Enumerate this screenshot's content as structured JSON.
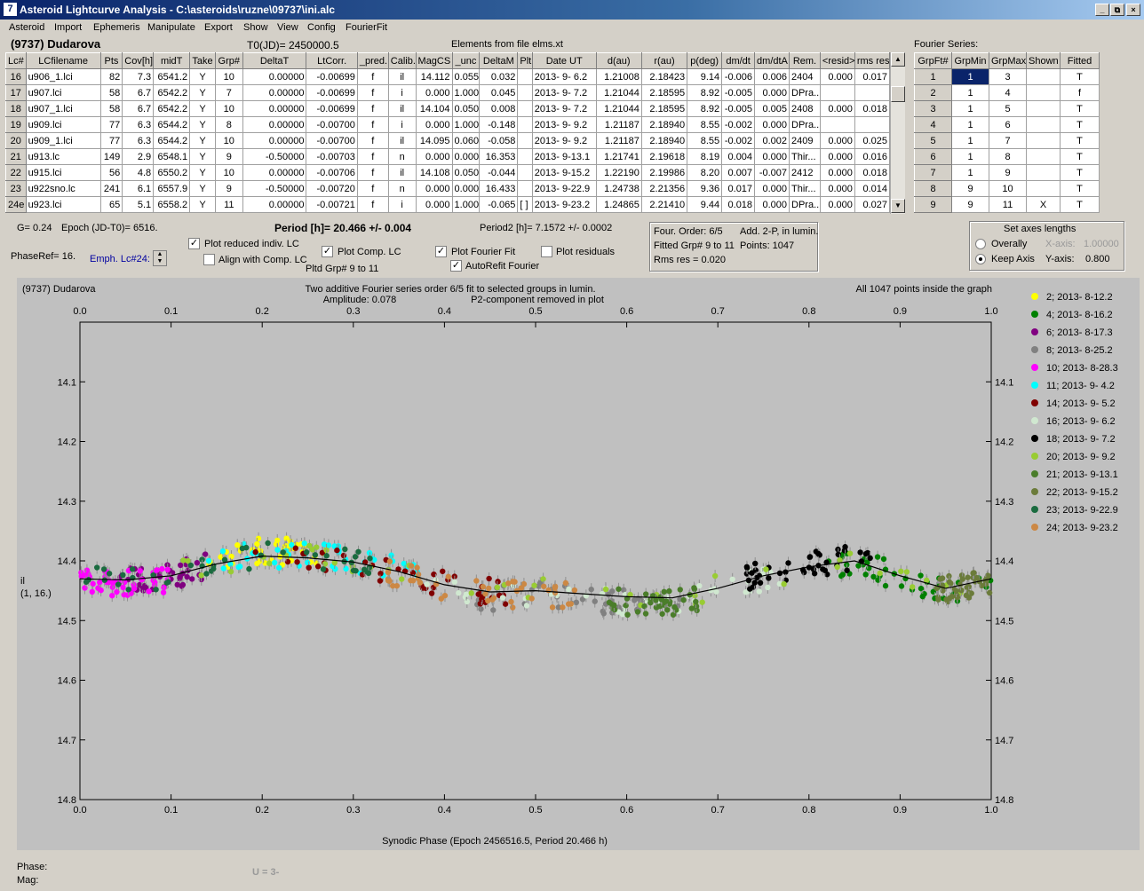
{
  "window": {
    "title": "Asteroid Lightcurve Analysis - C:\\asteroids\\ruzne\\09737\\ini.alc",
    "icon": "app-icon",
    "btn_min": "_",
    "btn_max": "⧉",
    "btn_close": "×"
  },
  "menu": [
    "Asteroid",
    "Import",
    "Ephemeris",
    "Manipulate",
    "Export",
    "Show",
    "View",
    "Config",
    "FourierFit"
  ],
  "header": {
    "asteroid": "(9737) Dudarova",
    "t0": "T0(JD)= 2450000.5",
    "elements": "Elements from file elms.xt",
    "fourier_series_label": "Fourier Series:"
  },
  "lc_table": {
    "columns": [
      "Lc#",
      "LCfilename",
      "Pts",
      "Cov[h]",
      "midT",
      "Take",
      "Grp#",
      "DeltaT",
      "LtCorr.",
      "_pred.",
      "Calib.",
      "MagCS",
      "_unc",
      "DeltaM",
      "Plt",
      "Date UT",
      "d(au)",
      "r(au)",
      "p(deg)",
      "dm/dt",
      "dm/dtA",
      "Rem.",
      "<resid>",
      "rms res"
    ],
    "rows": [
      [
        "16",
        "u906_1.lci",
        "82",
        "7.3",
        "6541.2",
        "Y",
        "10",
        "0.00000",
        "-0.00699",
        "f",
        "il",
        "14.112",
        "0.055",
        "0.032",
        "",
        "2013- 9- 6.2",
        "1.21008",
        "2.18423",
        "9.14",
        "-0.006",
        "0.006",
        "2404",
        "0.000",
        "0.017"
      ],
      [
        "17",
        "u907.lci",
        "58",
        "6.7",
        "6542.2",
        "Y",
        "7",
        "0.00000",
        "-0.00699",
        "f",
        "i",
        "0.000",
        "1.000",
        "0.045",
        "",
        "2013- 9- 7.2",
        "1.21044",
        "2.18595",
        "8.92",
        "-0.005",
        "0.000",
        "DPra...",
        "",
        ""
      ],
      [
        "18",
        "u907_1.lci",
        "58",
        "6.7",
        "6542.2",
        "Y",
        "10",
        "0.00000",
        "-0.00699",
        "f",
        "il",
        "14.104",
        "0.050",
        "0.008",
        "",
        "2013- 9- 7.2",
        "1.21044",
        "2.18595",
        "8.92",
        "-0.005",
        "0.005",
        "2408",
        "0.000",
        "0.018"
      ],
      [
        "19",
        "u909.lci",
        "77",
        "6.3",
        "6544.2",
        "Y",
        "8",
        "0.00000",
        "-0.00700",
        "f",
        "i",
        "0.000",
        "1.000",
        "-0.148",
        "",
        "2013- 9- 9.2",
        "1.21187",
        "2.18940",
        "8.55",
        "-0.002",
        "0.000",
        "DPra...",
        "",
        ""
      ],
      [
        "20",
        "u909_1.lci",
        "77",
        "6.3",
        "6544.2",
        "Y",
        "10",
        "0.00000",
        "-0.00700",
        "f",
        "il",
        "14.095",
        "0.060",
        "-0.058",
        "",
        "2013- 9- 9.2",
        "1.21187",
        "2.18940",
        "8.55",
        "-0.002",
        "0.002",
        "2409",
        "0.000",
        "0.025"
      ],
      [
        "21",
        "u913.lc",
        "149",
        "2.9",
        "6548.1",
        "Y",
        "9",
        "-0.50000",
        "-0.00703",
        "f",
        "n",
        "0.000",
        "0.000",
        "16.353",
        "",
        "2013- 9-13.1",
        "1.21741",
        "2.19618",
        "8.19",
        "0.004",
        "0.000",
        "Thir...",
        "0.000",
        "0.016"
      ],
      [
        "22",
        "u915.lci",
        "56",
        "4.8",
        "6550.2",
        "Y",
        "10",
        "0.00000",
        "-0.00706",
        "f",
        "il",
        "14.108",
        "0.050",
        "-0.044",
        "",
        "2013- 9-15.2",
        "1.22190",
        "2.19986",
        "8.20",
        "0.007",
        "-0.007",
        "2412",
        "0.000",
        "0.018"
      ],
      [
        "23",
        "u922sno.lc",
        "241",
        "6.1",
        "6557.9",
        "Y",
        "9",
        "-0.50000",
        "-0.00720",
        "f",
        "n",
        "0.000",
        "0.000",
        "16.433",
        "",
        "2013- 9-22.9",
        "1.24738",
        "2.21356",
        "9.36",
        "0.017",
        "0.000",
        "Thir...",
        "0.000",
        "0.014"
      ],
      [
        "24e",
        "u923.lci",
        "65",
        "5.1",
        "6558.2",
        "Y",
        "11",
        "0.00000",
        "-0.00721",
        "f",
        "i",
        "0.000",
        "1.000",
        "-0.065",
        "[ ]",
        "2013- 9-23.2",
        "1.24865",
        "2.21410",
        "9.44",
        "0.018",
        "0.000",
        "DPra...",
        "0.000",
        "0.027"
      ]
    ]
  },
  "fourier_table": {
    "columns": [
      "GrpFt#",
      "GrpMin",
      "GrpMax",
      "Shown",
      "Fitted"
    ],
    "rows": [
      [
        "1",
        "1",
        "3",
        "",
        "T"
      ],
      [
        "2",
        "1",
        "4",
        "",
        "f"
      ],
      [
        "3",
        "1",
        "5",
        "",
        "T"
      ],
      [
        "4",
        "1",
        "6",
        "",
        "T"
      ],
      [
        "5",
        "1",
        "7",
        "",
        "T"
      ],
      [
        "6",
        "1",
        "8",
        "",
        "T"
      ],
      [
        "7",
        "1",
        "9",
        "",
        "T"
      ],
      [
        "8",
        "9",
        "10",
        "",
        "T"
      ],
      [
        "9",
        "9",
        "11",
        "X",
        "T"
      ]
    ]
  },
  "controls": {
    "g": "G= 0.24",
    "epoch": "Epoch (JD-T0)= 6516.",
    "phaseref": "PhaseRef= 16.",
    "emph": "Emph. Lc#24:",
    "period": "Period [h]= 20.466 +/- 0.004",
    "period2": "Period2 [h]= 7.1572 +/- 0.0002",
    "plot_reduced": "Plot reduced indiv. LC",
    "align": "Align with Comp. LC",
    "plot_comp": "Plot Comp. LC",
    "pltd": "Pltd Grp#  9  to  11",
    "plot_fourier": "Plot Fourier Fit",
    "autorefit": "AutoRefit Fourier",
    "plot_residuals": "Plot residuals",
    "info1": "Four. Order:  6/5",
    "info2": "Add. 2-P, in lumin.",
    "info3": "Fitted Grp# 9 to 11",
    "info4": "Points: 1047",
    "info5": "Rms res     = 0.020",
    "axes_title": "Set axes lengths",
    "overally": "Overally",
    "keep_axis": "Keep Axis",
    "xaxis": "X-axis:",
    "xval": "1.00000",
    "yaxis": "Y-axis:",
    "yval": "0.800"
  },
  "status": {
    "phase": "Phase:",
    "mag": "Mag:",
    "u": "U = 3-"
  },
  "chart_data": {
    "type": "scatter",
    "title": "Two additive Fourier series order 6/5 fit to selected groups in lumin.",
    "subtitle": "Amplitude: 0.078",
    "subtitle2": "P2-component removed in plot",
    "corner_left": "(9737) Dudarova",
    "corner_right": "All 1047 points inside the graph",
    "xlabel": "Synodic Phase (Epoch 2456516.5, Period 20.466 h)",
    "ylabel": "il",
    "ylabel2": "(1, 16.)",
    "xlim": [
      0,
      1
    ],
    "ylim": [
      14.0,
      14.8
    ],
    "y_inverted": true,
    "x_ticks": [
      "0.0",
      "0.1",
      "0.2",
      "0.3",
      "0.4",
      "0.5",
      "0.6",
      "0.7",
      "0.8",
      "0.9",
      "1.0"
    ],
    "y_ticks": [
      "14.1",
      "14.2",
      "14.3",
      "14.4",
      "14.5",
      "14.6",
      "14.7",
      "14.8"
    ],
    "legend_position": "right",
    "series": [
      {
        "name": "2; 2013- 8-12.2",
        "color": "#ffff00",
        "phase_range": [
          0.14,
          0.27
        ],
        "mag_center": 14.39
      },
      {
        "name": "4; 2013- 8-16.2",
        "color": "#008000",
        "phase_range": [
          0.82,
          1.0
        ],
        "mag_center": 14.43
      },
      {
        "name": "6; 2013- 8-17.3",
        "color": "#800080",
        "phase_range": [
          0.04,
          0.14
        ],
        "mag_center": 14.42
      },
      {
        "name": "8; 2013- 8-25.2",
        "color": "#808080",
        "phase_range": [
          0.43,
          0.66
        ],
        "mag_center": 14.45
      },
      {
        "name": "10; 2013- 8-28.3",
        "color": "#ff00ff",
        "phase_range": [
          0.0,
          0.1
        ],
        "mag_center": 14.44
      },
      {
        "name": "11; 2013- 9- 4.2",
        "color": "#00ffff",
        "phase_range": [
          0.14,
          0.38
        ],
        "mag_center": 14.41
      },
      {
        "name": "14; 2013- 9- 5.2",
        "color": "#800000",
        "phase_range": [
          0.19,
          0.47
        ],
        "mag_center": 14.42
      },
      {
        "name": "16; 2013- 9- 6.2",
        "color": "#d0e8d0",
        "phase_range": [
          0.38,
          0.78
        ],
        "mag_center": 14.45
      },
      {
        "name": "18; 2013- 9- 7.2",
        "color": "#000000",
        "phase_range": [
          0.73,
          0.88
        ],
        "mag_center": 14.41
      },
      {
        "name": "20; 2013- 9- 9.2",
        "color": "#99cc33",
        "phase_range": [
          0.1,
          0.97
        ],
        "mag_center": 14.42
      },
      {
        "name": "21; 2013- 9-13.1",
        "color": "#4a7d2a",
        "phase_range": [
          0.58,
          0.68
        ],
        "mag_center": 14.45
      },
      {
        "name": "22; 2013- 9-15.2",
        "color": "#6b7b3a",
        "phase_range": [
          0.94,
          1.0
        ],
        "mag_center": 14.43
      },
      {
        "name": "23; 2013- 9-22.9",
        "color": "#1a6b3f",
        "phase_range": [
          0.0,
          0.33
        ],
        "mag_center": 14.42
      },
      {
        "name": "24; 2013- 9-23.2",
        "color": "#cc8844",
        "phase_range": [
          0.33,
          0.56
        ],
        "mag_center": 14.44
      }
    ],
    "fit_curve": [
      [
        0.0,
        14.43
      ],
      [
        0.05,
        14.432
      ],
      [
        0.1,
        14.425
      ],
      [
        0.15,
        14.405
      ],
      [
        0.2,
        14.392
      ],
      [
        0.25,
        14.395
      ],
      [
        0.3,
        14.402
      ],
      [
        0.35,
        14.418
      ],
      [
        0.4,
        14.44
      ],
      [
        0.45,
        14.452
      ],
      [
        0.5,
        14.45
      ],
      [
        0.55,
        14.455
      ],
      [
        0.6,
        14.46
      ],
      [
        0.65,
        14.462
      ],
      [
        0.7,
        14.446
      ],
      [
        0.75,
        14.425
      ],
      [
        0.8,
        14.41
      ],
      [
        0.85,
        14.4
      ],
      [
        0.9,
        14.425
      ],
      [
        0.95,
        14.446
      ],
      [
        1.0,
        14.43
      ]
    ]
  }
}
